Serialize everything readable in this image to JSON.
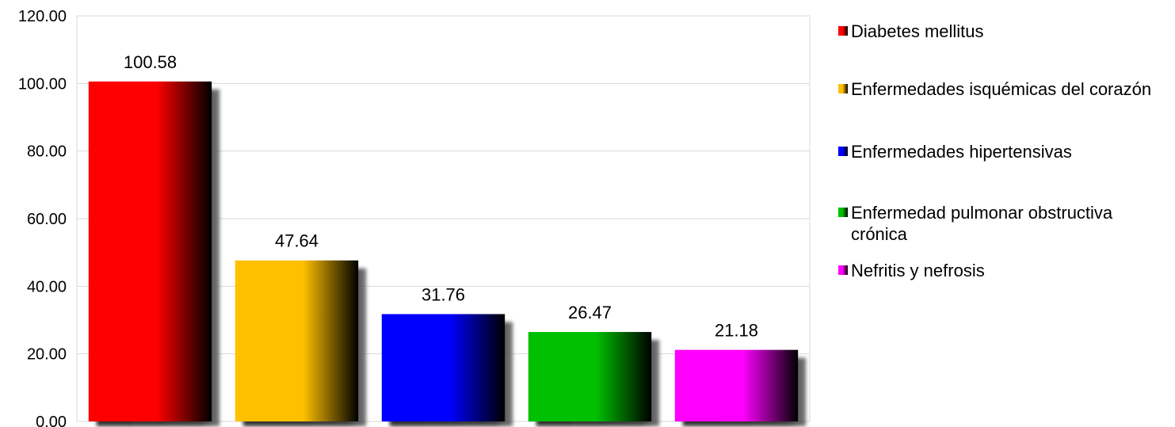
{
  "chart_data": {
    "type": "bar",
    "title": "",
    "xlabel": "",
    "ylabel": "",
    "ylim": [
      0,
      120
    ],
    "yticks": [
      "0.00",
      "20.00",
      "40.00",
      "60.00",
      "80.00",
      "100.00",
      "120.00"
    ],
    "grid": true,
    "legend_position": "right",
    "categories": [
      "Diabetes mellitus",
      "Enfermedades isquémicas del corazón",
      "Enfermedades hipertensivas",
      "Enfermedad pulmonar obstructiva crónica",
      "Nefritis y nefrosis"
    ],
    "values": [
      100.58,
      47.64,
      31.76,
      26.47,
      21.18
    ],
    "value_labels": [
      "100.58",
      "47.64",
      "31.76",
      "26.47",
      "21.18"
    ],
    "colors": [
      "#ff0000",
      "#ffc000",
      "#0000ff",
      "#00c000",
      "#ff00ff"
    ]
  }
}
